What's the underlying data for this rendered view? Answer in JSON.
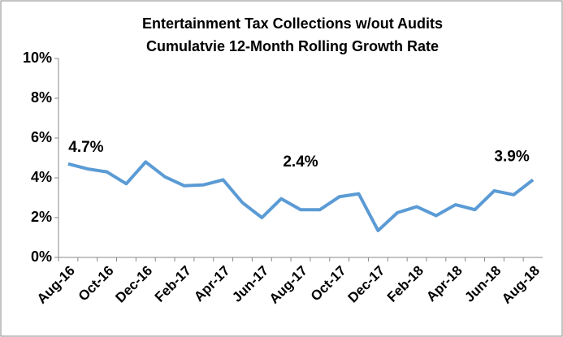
{
  "chart_data": {
    "type": "line",
    "title": "Entertainment Tax Collections w/out Audits",
    "subtitle": "Cumulatvie 12-Month Rolling Growth Rate",
    "categories": [
      "Aug-16",
      null,
      "Oct-16",
      null,
      "Dec-16",
      null,
      "Feb-17",
      null,
      "Apr-17",
      null,
      "Jun-17",
      null,
      "Aug-17",
      null,
      "Oct-17",
      null,
      "Dec-17",
      null,
      "Feb-18",
      null,
      "Apr-18",
      null,
      "Jun-18",
      null,
      "Aug-18"
    ],
    "values": [
      4.7,
      4.45,
      4.3,
      3.7,
      4.8,
      4.05,
      3.6,
      3.65,
      3.9,
      2.75,
      2.0,
      2.95,
      2.4,
      2.4,
      3.05,
      3.2,
      1.35,
      2.25,
      2.55,
      2.1,
      2.65,
      2.4,
      3.35,
      3.15,
      3.9
    ],
    "value_labels": [
      "4.7%",
      null,
      null,
      null,
      null,
      null,
      null,
      null,
      null,
      null,
      null,
      null,
      "2.4%",
      null,
      null,
      null,
      null,
      null,
      null,
      null,
      null,
      null,
      null,
      null,
      "3.9%"
    ],
    "color": "#5b9bd5",
    "ylim": [
      0,
      10
    ],
    "yticks": [
      {
        "value": 0,
        "label": "0%"
      },
      {
        "value": 2,
        "label": "2%"
      },
      {
        "value": 4,
        "label": "4%"
      },
      {
        "value": 6,
        "label": "6%"
      },
      {
        "value": 8,
        "label": "8%"
      },
      {
        "value": 10,
        "label": "10%"
      }
    ],
    "grid": false
  }
}
